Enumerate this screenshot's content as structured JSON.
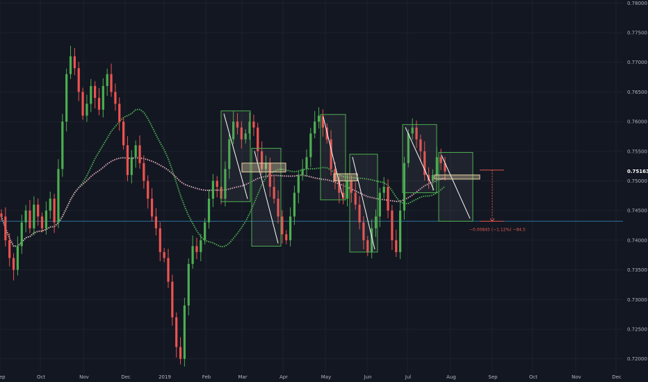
{
  "colors": {
    "background": "#131722",
    "grid": "#1e222d",
    "up": "#26a69a",
    "up_bright": "#4caf50",
    "down": "#ef5350",
    "ma_green": "#4caf50",
    "ma_pink": "#d7a8b4",
    "box_border": "#4caf50",
    "zone_fill": "#e8d6a8",
    "hline": "#2a6f97",
    "measure": "#e05a4e",
    "text": "#b2b5be"
  },
  "chart_data": {
    "type": "candlestick",
    "symbol": "",
    "x_axis_labels": [
      "Sep",
      "Oct",
      "Nov",
      "Dec",
      "2019",
      "Feb",
      "Mar",
      "Apr",
      "May",
      "Jun",
      "Jul",
      "Aug",
      "Sep",
      "Oct",
      "Nov",
      "Dec"
    ],
    "y_ticks": [
      "0.78000",
      "0.77500",
      "0.77000",
      "0.76500",
      "0.76000",
      "0.75500",
      "0.75000",
      "0.74500",
      "0.74000",
      "0.73500",
      "0.73000",
      "0.72500",
      "0.72000"
    ],
    "ylim": [
      0.7175,
      0.7805
    ],
    "last_price": 0.75163,
    "last_price_label": "0.75163",
    "horizontal_line": 0.7432,
    "measure_label": "−0.00845 (−1.12%) −84.5",
    "closes": [
      0.744,
      0.74,
      0.737,
      0.735,
      0.739,
      0.743,
      0.745,
      0.742,
      0.746,
      0.744,
      0.742,
      0.745,
      0.747,
      0.743,
      0.752,
      0.76,
      0.768,
      0.771,
      0.769,
      0.765,
      0.761,
      0.763,
      0.766,
      0.764,
      0.762,
      0.766,
      0.768,
      0.765,
      0.763,
      0.76,
      0.756,
      0.751,
      0.754,
      0.756,
      0.753,
      0.75,
      0.747,
      0.744,
      0.742,
      0.738,
      0.737,
      0.733,
      0.727,
      0.722,
      0.72,
      0.729,
      0.736,
      0.739,
      0.738,
      0.74,
      0.743,
      0.747,
      0.75,
      0.749,
      0.747,
      0.752,
      0.757,
      0.76,
      0.759,
      0.757,
      0.758,
      0.76,
      0.759,
      0.755,
      0.752,
      0.753,
      0.749,
      0.747,
      0.744,
      0.741,
      0.74,
      0.744,
      0.748,
      0.751,
      0.752,
      0.754,
      0.758,
      0.76,
      0.761,
      0.759,
      0.757,
      0.752,
      0.75,
      0.748,
      0.747,
      0.75,
      0.748,
      0.746,
      0.743,
      0.74,
      0.738,
      0.742,
      0.744,
      0.748,
      0.749,
      0.745,
      0.74,
      0.738,
      0.745,
      0.753,
      0.758,
      0.759,
      0.757,
      0.755,
      0.751,
      0.75,
      0.751,
      0.754,
      0.753,
      0.7516
    ],
    "boxes": [
      {
        "range": [
          0.7465,
          0.7618
        ]
      },
      {
        "range": [
          0.739,
          0.7555
        ]
      },
      {
        "range": [
          0.7468,
          0.7612
        ]
      },
      {
        "range": [
          0.738,
          0.7545
        ]
      },
      {
        "range": [
          0.748,
          0.7595
        ]
      },
      {
        "range": [
          0.7432,
          0.7548
        ]
      }
    ],
    "zones": [
      {
        "range": [
          0.7515,
          0.753
        ]
      },
      {
        "range": [
          0.75,
          0.7512
        ]
      },
      {
        "range": [
          0.7503,
          0.751
        ]
      }
    ],
    "moving_averages": [
      {
        "color": "green"
      },
      {
        "color": "pink"
      }
    ]
  }
}
